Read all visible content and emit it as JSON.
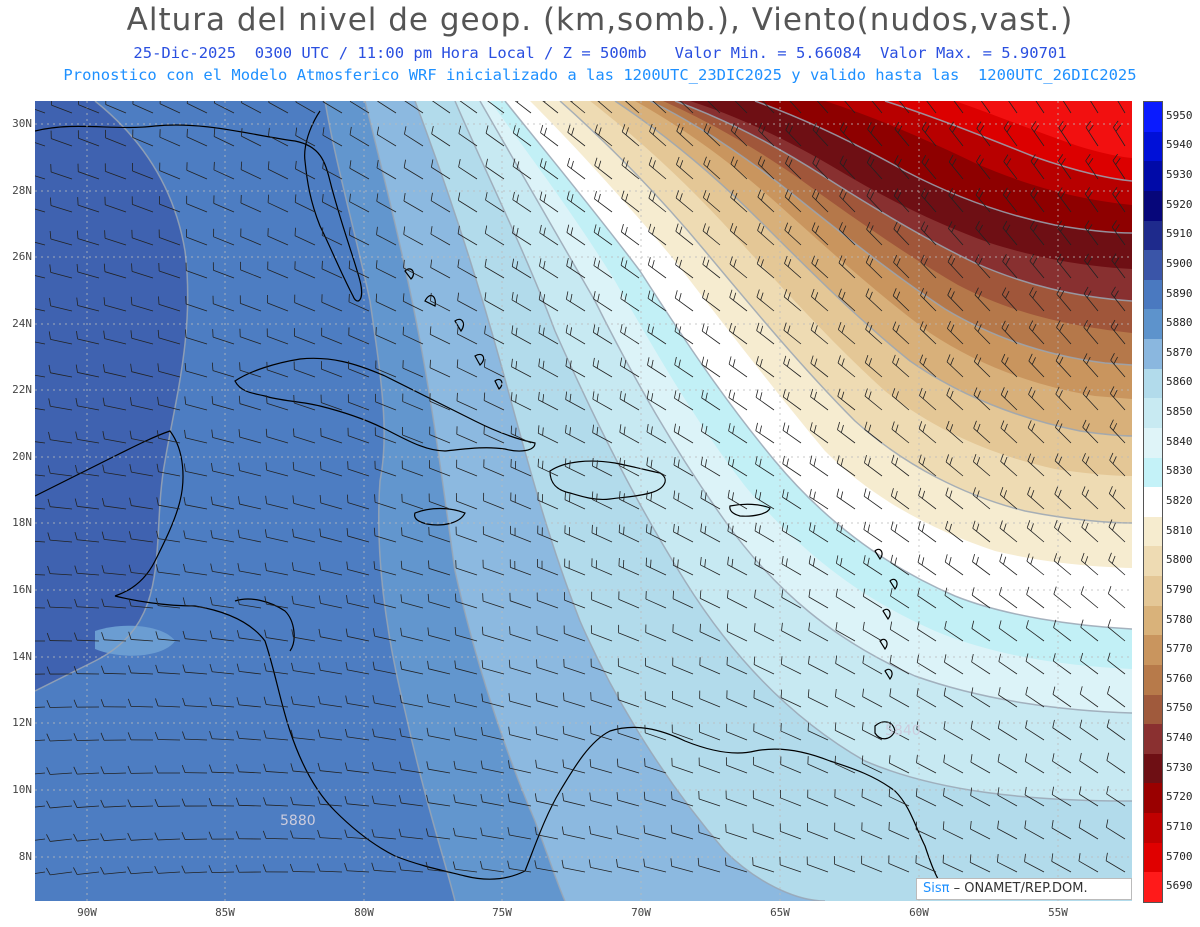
{
  "header": {
    "title": "Altura del nivel de geop. (km,somb.), Viento(nudos,vast.)",
    "line1": "25-Dic-2025  0300 UTC / 11:00 pm Hora Local / Z = 500mb   Valor Min. = 5.66084  Valor Max. = 5.90701",
    "line2": "Pronostico con el Modelo Atmosferico WRF inicializado a las 1200UTC_23DIC2025 y valido hasta las  1200UTC_26DIC2025"
  },
  "lat_labels": [
    "30N",
    "28N",
    "26N",
    "24N",
    "22N",
    "20N",
    "18N",
    "16N",
    "14N",
    "12N",
    "10N",
    "8N"
  ],
  "lon_labels": [
    "90W",
    "85W",
    "80W",
    "75W",
    "70W",
    "65W",
    "60W",
    "55W"
  ],
  "colorbar": {
    "levels": [
      "5950",
      "5940",
      "5930",
      "5920",
      "5910",
      "5900",
      "5890",
      "5880",
      "5870",
      "5860",
      "5850",
      "5840",
      "5830",
      "5820",
      "5810",
      "5800",
      "5790",
      "5780",
      "5770",
      "5760",
      "5750",
      "5740",
      "5730",
      "5720",
      "5710",
      "5700",
      "5690"
    ],
    "colors": [
      "#0a1bff",
      "#0010d8",
      "#000aa8",
      "#06067a",
      "#1e2a8c",
      "#3a55a8",
      "#4a79c0",
      "#5d93cc",
      "#8ab7df",
      "#b2dbeb",
      "#c8eaf2",
      "#dff4f8",
      "#c4f2f8",
      "#ffffff",
      "#f6eccf",
      "#eedbb3",
      "#e4c796",
      "#d9b27a",
      "#c9955e",
      "#b77a4a",
      "#a05a3c",
      "#8a3030",
      "#6e0f14",
      "#9a0000",
      "#c00000",
      "#e00000",
      "#ff1a1a"
    ]
  },
  "map_labels": {
    "contour_a": "5840",
    "contour_b": "5880"
  },
  "credit": {
    "sis": "Sisπ",
    "org": " – ONAMET/REP.DOM."
  }
}
